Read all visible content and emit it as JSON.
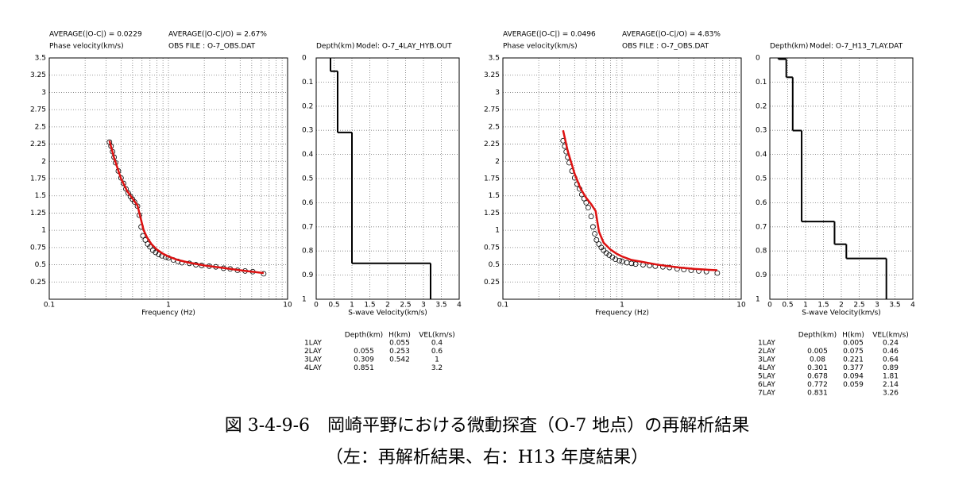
{
  "chart_data": [
    {
      "type": "line",
      "stats": [
        "AVERAGE(|O-C|) = 0.0229",
        "AVERAGE(|O-C|/O) = 2.67%"
      ],
      "y_label": "Phase velocity(km/s)",
      "note": "OBS FILE : O-7_OBS.DAT",
      "x_label": "Frequency (Hz)",
      "xscale": "log",
      "xlim": [
        0.1,
        10
      ],
      "xticks": [
        0.1,
        1,
        10
      ],
      "ylim": [
        0,
        3.5
      ],
      "yticks": [
        0.25,
        0.5,
        0.75,
        1,
        1.25,
        1.5,
        1.75,
        2,
        2.25,
        2.5,
        2.75,
        3,
        3.25,
        3.5
      ],
      "grid": true,
      "series": [
        {
          "marker": "circle",
          "color": "#000000",
          "x": [
            0.32,
            0.33,
            0.34,
            0.35,
            0.36,
            0.38,
            0.4,
            0.42,
            0.44,
            0.46,
            0.48,
            0.5,
            0.52,
            0.55,
            0.57,
            0.59,
            0.61,
            0.64,
            0.67,
            0.7,
            0.74,
            0.78,
            0.83,
            0.88,
            0.95,
            1.0,
            1.1,
            1.2,
            1.3,
            1.5,
            1.7,
            1.9,
            2.2,
            2.5,
            2.9,
            3.3,
            3.8,
            4.4,
            5.1,
            6.3
          ],
          "values": [
            2.28,
            2.22,
            2.14,
            2.06,
            1.98,
            1.86,
            1.76,
            1.68,
            1.6,
            1.54,
            1.49,
            1.45,
            1.41,
            1.35,
            1.22,
            1.05,
            0.92,
            0.86,
            0.8,
            0.76,
            0.71,
            0.68,
            0.65,
            0.63,
            0.61,
            0.6,
            0.57,
            0.55,
            0.53,
            0.52,
            0.5,
            0.49,
            0.48,
            0.47,
            0.45,
            0.44,
            0.42,
            0.41,
            0.4,
            0.37
          ]
        },
        {
          "color": "#dd1111",
          "x": [
            0.32,
            0.35,
            0.4,
            0.45,
            0.5,
            0.55,
            0.58,
            0.62,
            0.66,
            0.72,
            0.8,
            0.9,
            1,
            1.2,
            1.5,
            2,
            3,
            4,
            5,
            6.3
          ],
          "values": [
            2.3,
            2.05,
            1.75,
            1.57,
            1.46,
            1.36,
            1.2,
            1.0,
            0.9,
            0.8,
            0.72,
            0.66,
            0.62,
            0.57,
            0.53,
            0.49,
            0.45,
            0.42,
            0.4,
            0.38
          ]
        }
      ]
    },
    {
      "type": "step",
      "y_label": "Depth(km)",
      "title": "Model: O-7_4LAY_HYB.OUT",
      "x_label": "S-wave Velocity(km/s)",
      "xlim": [
        0,
        4
      ],
      "xticks": [
        0,
        0.5,
        1,
        1.5,
        2,
        2.5,
        3,
        3.5,
        4
      ],
      "ylim": [
        0,
        1
      ],
      "yticks": [
        0,
        0.1,
        0.2,
        0.3,
        0.4,
        0.5,
        0.6,
        0.7,
        0.8,
        0.9,
        1
      ],
      "grid": true,
      "color": "#000000",
      "columns": [
        "Depth(km)",
        "H(km)",
        "VEL(km/s)"
      ],
      "layers": [
        {
          "name": "1LAY",
          "h": 0.055,
          "vel": 0.4
        },
        {
          "name": "2LAY",
          "depth": 0.055,
          "h": 0.253,
          "vel": 0.6
        },
        {
          "name": "3LAY",
          "depth": 0.309,
          "h": 0.542,
          "vel": 1
        },
        {
          "name": "4LAY",
          "depth": 0.851,
          "vel": 3.2
        }
      ]
    },
    {
      "type": "line",
      "stats": [
        "AVERAGE(|O-C|) = 0.0496",
        "AVERAGE(|O-C|/O) = 4.83%"
      ],
      "y_label": "Phase velocity(km/s)",
      "note": "OBS FILE : O-7_OBS.DAT",
      "x_label": "Frequency (Hz)",
      "xscale": "log",
      "xlim": [
        0.1,
        10
      ],
      "xticks": [
        0.1,
        1,
        10
      ],
      "ylim": [
        0,
        3.5
      ],
      "yticks": [
        0.25,
        0.5,
        0.75,
        1,
        1.25,
        1.5,
        1.75,
        2,
        2.25,
        2.5,
        2.75,
        3,
        3.25,
        3.5
      ],
      "grid": true,
      "series": [
        {
          "marker": "circle",
          "color": "#000000",
          "x": [
            0.32,
            0.33,
            0.34,
            0.35,
            0.36,
            0.38,
            0.4,
            0.42,
            0.44,
            0.46,
            0.48,
            0.5,
            0.52,
            0.55,
            0.57,
            0.59,
            0.61,
            0.64,
            0.67,
            0.7,
            0.74,
            0.78,
            0.83,
            0.88,
            0.95,
            1.0,
            1.1,
            1.2,
            1.3,
            1.5,
            1.7,
            1.9,
            2.2,
            2.5,
            2.9,
            3.3,
            3.8,
            4.4,
            5.1,
            6.3
          ],
          "values": [
            2.3,
            2.22,
            2.14,
            2.06,
            1.98,
            1.86,
            1.76,
            1.67,
            1.6,
            1.52,
            1.46,
            1.4,
            1.33,
            1.2,
            1.05,
            0.95,
            0.86,
            0.8,
            0.75,
            0.71,
            0.67,
            0.64,
            0.61,
            0.58,
            0.56,
            0.55,
            0.53,
            0.52,
            0.51,
            0.5,
            0.49,
            0.48,
            0.47,
            0.46,
            0.44,
            0.43,
            0.42,
            0.41,
            0.4,
            0.38
          ]
        },
        {
          "color": "#dd1111",
          "x": [
            0.32,
            0.35,
            0.4,
            0.45,
            0.5,
            0.55,
            0.6,
            0.64,
            0.7,
            0.8,
            0.9,
            1,
            1.2,
            1.5,
            2,
            3,
            4,
            5,
            6.3
          ],
          "values": [
            2.45,
            2.15,
            1.82,
            1.6,
            1.47,
            1.38,
            1.28,
            0.98,
            0.82,
            0.72,
            0.66,
            0.62,
            0.57,
            0.54,
            0.5,
            0.46,
            0.44,
            0.43,
            0.42
          ]
        }
      ]
    },
    {
      "type": "step",
      "y_label": "Depth(km)",
      "title": "Model: O-7_H13_7LAY.DAT",
      "x_label": "S-wave Velocity(km/s)",
      "xlim": [
        0,
        4
      ],
      "xticks": [
        0,
        0.5,
        1,
        1.5,
        2,
        2.5,
        3,
        3.5,
        4
      ],
      "ylim": [
        0,
        1
      ],
      "yticks": [
        0,
        0.1,
        0.2,
        0.3,
        0.4,
        0.5,
        0.6,
        0.7,
        0.8,
        0.9,
        1
      ],
      "grid": true,
      "color": "#000000",
      "columns": [
        "Depth(km)",
        "H(km)",
        "VEL(km/s)"
      ],
      "layers": [
        {
          "name": "1LAY",
          "h": 0.005,
          "vel": 0.24
        },
        {
          "name": "2LAY",
          "depth": 0.005,
          "h": 0.075,
          "vel": 0.46
        },
        {
          "name": "3LAY",
          "depth": 0.08,
          "h": 0.221,
          "vel": 0.64
        },
        {
          "name": "4LAY",
          "depth": 0.301,
          "h": 0.377,
          "vel": 0.89
        },
        {
          "name": "5LAY",
          "depth": 0.678,
          "h": 0.094,
          "vel": 1.81
        },
        {
          "name": "6LAY",
          "depth": 0.772,
          "h": 0.059,
          "vel": 2.14
        },
        {
          "name": "7LAY",
          "depth": 0.831,
          "vel": 3.26
        }
      ]
    }
  ],
  "caption": [
    "図 3-4-9-6　岡崎平野における微動探査（O-7 地点）の再解析結果",
    "（左：再解析結果、右：H13 年度結果）"
  ]
}
